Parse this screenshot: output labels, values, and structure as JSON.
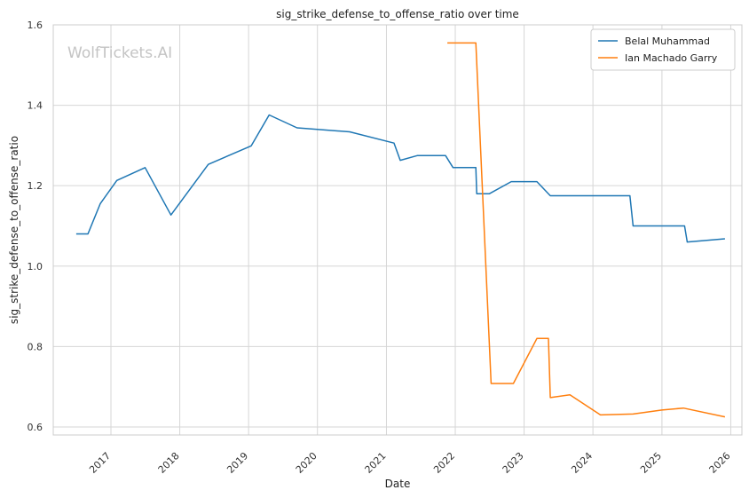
{
  "chart_data": {
    "type": "line",
    "title": "sig_strike_defense_to_offense_ratio over time",
    "xlabel": "Date",
    "ylabel": "sig_strike_defense_to_offense_ratio",
    "watermark": "WolfTickets.AI",
    "x_type": "date",
    "xlim": [
      "2016-03-01",
      "2026-03-01"
    ],
    "ylim": [
      0.58,
      1.6
    ],
    "x_ticks": [
      "2017-01-01",
      "2018-01-01",
      "2019-01-01",
      "2020-01-01",
      "2021-01-01",
      "2022-01-01",
      "2023-01-01",
      "2024-01-01",
      "2025-01-01",
      "2026-01-01"
    ],
    "x_tick_labels": [
      "2017",
      "2018",
      "2019",
      "2020",
      "2021",
      "2022",
      "2023",
      "2024",
      "2025",
      "2026"
    ],
    "y_ticks": [
      0.6,
      0.8,
      1.0,
      1.2,
      1.4,
      1.6
    ],
    "y_tick_labels": [
      "0.6",
      "0.8",
      "1.0",
      "1.2",
      "1.4",
      "1.6"
    ],
    "grid": true,
    "legend_position": "top-right",
    "series": [
      {
        "name": "Belal Muhammad",
        "color": "#1f77b4",
        "points": [
          {
            "x": "2016-07-01",
            "y": 1.08
          },
          {
            "x": "2016-09-01",
            "y": 1.08
          },
          {
            "x": "2016-11-05",
            "y": 1.155
          },
          {
            "x": "2017-02-01",
            "y": 1.213
          },
          {
            "x": "2017-07-01",
            "y": 1.245
          },
          {
            "x": "2017-11-15",
            "y": 1.127
          },
          {
            "x": "2018-06-01",
            "y": 1.253
          },
          {
            "x": "2019-01-15",
            "y": 1.299
          },
          {
            "x": "2019-04-20",
            "y": 1.376
          },
          {
            "x": "2019-09-15",
            "y": 1.344
          },
          {
            "x": "2020-06-20",
            "y": 1.334
          },
          {
            "x": "2021-02-10",
            "y": 1.306
          },
          {
            "x": "2021-03-15",
            "y": 1.263
          },
          {
            "x": "2021-06-15",
            "y": 1.275
          },
          {
            "x": "2021-11-10",
            "y": 1.275
          },
          {
            "x": "2021-12-20",
            "y": 1.245
          },
          {
            "x": "2022-04-20",
            "y": 1.245
          },
          {
            "x": "2022-04-25",
            "y": 1.18
          },
          {
            "x": "2022-07-01",
            "y": 1.18
          },
          {
            "x": "2022-10-25",
            "y": 1.21
          },
          {
            "x": "2023-03-10",
            "y": 1.21
          },
          {
            "x": "2023-05-20",
            "y": 1.175
          },
          {
            "x": "2024-07-15",
            "y": 1.175
          },
          {
            "x": "2024-08-01",
            "y": 1.1
          },
          {
            "x": "2025-05-01",
            "y": 1.1
          },
          {
            "x": "2025-05-15",
            "y": 1.06
          },
          {
            "x": "2025-12-01",
            "y": 1.068
          }
        ]
      },
      {
        "name": "Ian Machado Garry",
        "color": "#ff7f0e",
        "points": [
          {
            "x": "2021-11-20",
            "y": 1.555
          },
          {
            "x": "2022-04-20",
            "y": 1.555
          },
          {
            "x": "2022-07-10",
            "y": 0.708
          },
          {
            "x": "2022-11-05",
            "y": 0.708
          },
          {
            "x": "2023-03-10",
            "y": 0.82
          },
          {
            "x": "2023-05-10",
            "y": 0.82
          },
          {
            "x": "2023-05-20",
            "y": 0.673
          },
          {
            "x": "2023-09-01",
            "y": 0.68
          },
          {
            "x": "2024-02-10",
            "y": 0.63
          },
          {
            "x": "2024-08-01",
            "y": 0.632
          },
          {
            "x": "2025-01-01",
            "y": 0.642
          },
          {
            "x": "2025-04-25",
            "y": 0.647
          },
          {
            "x": "2025-12-01",
            "y": 0.625
          }
        ]
      }
    ]
  }
}
